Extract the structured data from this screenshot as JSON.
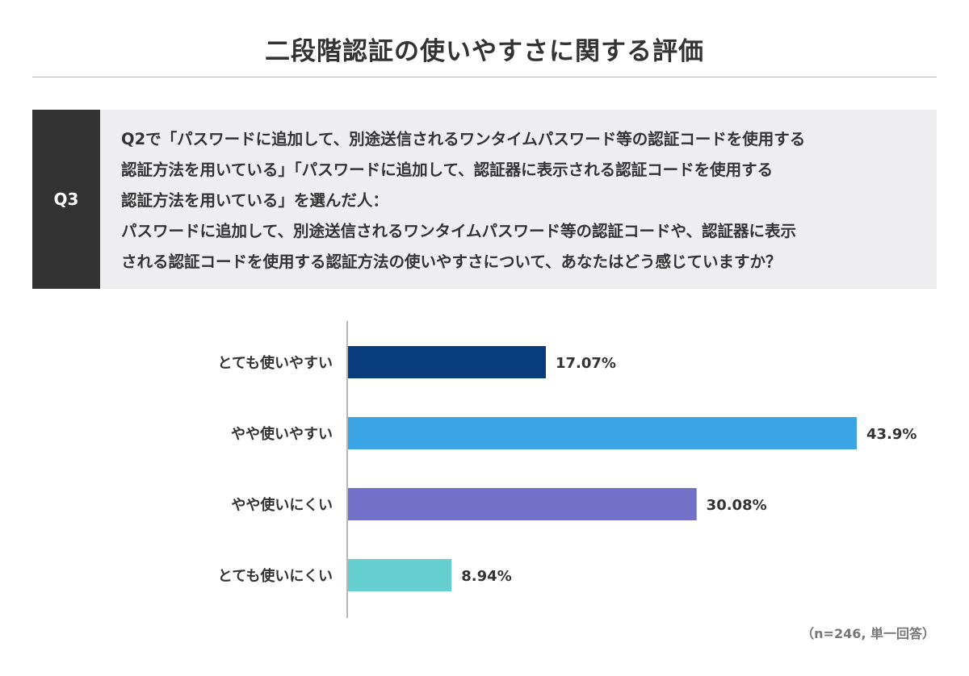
{
  "title": "二段階認証の使いやすさに関する評価",
  "question": {
    "label": "Q3",
    "lines": [
      "Q2で「パスワードに追加して、別途送信されるワンタイムパスワード等の認証コードを使用する",
      "認証方法を用いている」「パスワードに追加して、認証器に表示される認証コードを使用する",
      "認証方法を用いている」を選んだ人：",
      "パスワードに追加して、別途送信されるワンタイムパスワード等の認証コードや、認証器に表示",
      "される認証コードを使用する認証方法の使いやすさについて、あなたはどう感じていますか？"
    ]
  },
  "chart_data": {
    "type": "bar",
    "orientation": "horizontal",
    "title": "二段階認証の使いやすさに関する評価",
    "categories": [
      "とても使いやすい",
      "やや使いやすい",
      "やや使いにくい",
      "とても使いにくい"
    ],
    "values": [
      17.07,
      43.9,
      30.08,
      8.94
    ],
    "value_labels": [
      "17.07%",
      "43.9%",
      "30.08%",
      "8.94%"
    ],
    "colors": [
      "#093c7c",
      "#3aa4e4",
      "#7270c8",
      "#66cfcf"
    ],
    "xlim": [
      0,
      43.9
    ],
    "grid": false,
    "legend": "none",
    "xlabel": "",
    "ylabel": ""
  },
  "note": "（n=246, 単一回答）"
}
